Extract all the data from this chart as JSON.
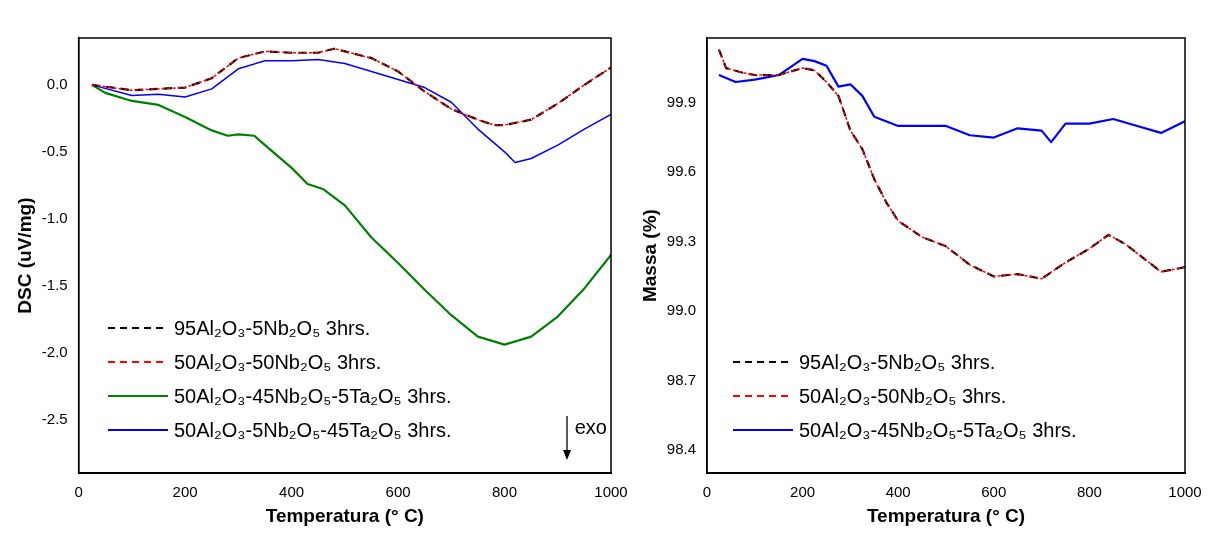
{
  "chart_data": [
    {
      "type": "line",
      "xlabel": "Temperatura (° C)",
      "ylabel": "DSC (uV/mg)",
      "xlim": [
        0,
        1000
      ],
      "xticks": [
        0,
        200,
        400,
        600,
        800,
        1000
      ],
      "ylim": [
        -2.9,
        0.35
      ],
      "yticks": [
        {
          "value": 0,
          "label": "0.0"
        },
        -0.5,
        {
          "value": -1,
          "label": "-1.0"
        },
        -1.5,
        {
          "value": -2,
          "label": "-2.0"
        },
        -2.5
      ],
      "grid": false,
      "legend": "bottom left",
      "marker": "none",
      "annotations": [
        "exo"
      ],
      "series": [
        {
          "name": "95Al₂O₃-5Nb₂O₅ 3hrs.",
          "color": "#000000",
          "line_style": "dashed",
          "x": [
            25,
            100,
            200,
            250,
            300,
            350,
            400,
            450,
            480,
            550,
            600,
            650,
            700,
            750,
            780,
            800,
            850,
            900,
            950,
            1000
          ],
          "values": [
            0,
            -0.04,
            -0.02,
            0.05,
            0.2,
            0.25,
            0.24,
            0.24,
            0.27,
            0.2,
            0.1,
            -0.05,
            -0.18,
            -0.26,
            -0.3,
            -0.3,
            -0.26,
            -0.14,
            0,
            0.13
          ]
        },
        {
          "name": "50Al₂O₃-50Nb₂O₅ 3hrs.",
          "color": "#ff0000",
          "line_style": "dashed",
          "x": [
            25,
            100,
            200,
            250,
            300,
            350,
            400,
            450,
            480,
            550,
            600,
            650,
            700,
            750,
            780,
            800,
            850,
            900,
            950,
            1000
          ],
          "values": [
            0,
            -0.04,
            -0.02,
            0.05,
            0.2,
            0.25,
            0.24,
            0.24,
            0.27,
            0.2,
            0.1,
            -0.05,
            -0.18,
            -0.26,
            -0.3,
            -0.3,
            -0.26,
            -0.14,
            0,
            0.13
          ]
        },
        {
          "name": "50Al₂O₃-45Nb₂O₅-5Ta₂O₅ 3hrs.",
          "color": "#008000",
          "line_style": "solid",
          "x": [
            25,
            50,
            100,
            150,
            200,
            250,
            280,
            300,
            330,
            350,
            400,
            430,
            460,
            500,
            550,
            600,
            650,
            700,
            750,
            800,
            850,
            900,
            950,
            1000
          ],
          "values": [
            0,
            -0.06,
            -0.12,
            -0.15,
            -0.24,
            -0.34,
            -0.38,
            -0.37,
            -0.38,
            -0.45,
            -0.62,
            -0.74,
            -0.78,
            -0.9,
            -1.14,
            -1.33,
            -1.53,
            -1.72,
            -1.88,
            -1.94,
            -1.88,
            -1.73,
            -1.52,
            -1.27
          ]
        },
        {
          "name": "50Al₂O₃-5Nb₂O₅-45Ta₂O₅ 3hrs.",
          "color": "#0000ff",
          "line_style": "solid",
          "x": [
            25,
            100,
            150,
            200,
            250,
            300,
            350,
            400,
            450,
            500,
            550,
            600,
            650,
            700,
            750,
            800,
            820,
            850,
            900,
            950,
            1000
          ],
          "values": [
            0,
            -0.08,
            -0.07,
            -0.09,
            -0.03,
            0.12,
            0.18,
            0.18,
            0.19,
            0.16,
            0.1,
            0.04,
            -0.02,
            -0.13,
            -0.33,
            -0.5,
            -0.58,
            -0.55,
            -0.45,
            -0.33,
            -0.22
          ]
        }
      ]
    },
    {
      "type": "line",
      "xlabel": "Temperatura (° C)",
      "ylabel": "Massa (%)",
      "xlim": [
        0,
        1000
      ],
      "xticks": [
        0,
        200,
        400,
        600,
        800,
        1000
      ],
      "ylim": [
        98.3,
        100.18
      ],
      "yticks": [
        98.4,
        98.7,
        {
          "value": 99,
          "label": "99.0"
        },
        99.3,
        99.6,
        99.9
      ],
      "grid": false,
      "legend": "bottom left",
      "marker": "none",
      "series": [
        {
          "name": "95Al₂O₃-5Nb₂O₅ 3hrs.",
          "color": "#000000",
          "line_style": "dashed",
          "x": [
            25,
            40,
            75,
            100,
            150,
            200,
            225,
            250,
            275,
            300,
            325,
            350,
            375,
            400,
            450,
            500,
            550,
            600,
            650,
            700,
            750,
            800,
            840,
            875,
            900,
            950,
            1000
          ],
          "values": [
            100.13,
            100.05,
            100.03,
            100.02,
            100.02,
            100.05,
            100.04,
            99.99,
            99.93,
            99.78,
            99.7,
            99.57,
            99.47,
            99.39,
            99.32,
            99.28,
            99.2,
            99.15,
            99.16,
            99.14,
            99.21,
            99.27,
            99.33,
            99.29,
            99.25,
            99.17,
            99.19
          ]
        },
        {
          "name": "50Al₂O₃-50Nb₂O₅ 3hrs.",
          "color": "#ff0000",
          "line_style": "dashed",
          "x": [
            25,
            40,
            75,
            100,
            150,
            200,
            225,
            250,
            275,
            300,
            325,
            350,
            375,
            400,
            450,
            500,
            550,
            600,
            650,
            700,
            750,
            800,
            840,
            875,
            900,
            950,
            1000
          ],
          "values": [
            100.13,
            100.05,
            100.03,
            100.02,
            100.02,
            100.05,
            100.04,
            99.99,
            99.93,
            99.78,
            99.7,
            99.57,
            99.47,
            99.39,
            99.32,
            99.28,
            99.2,
            99.15,
            99.16,
            99.14,
            99.21,
            99.27,
            99.33,
            99.29,
            99.25,
            99.17,
            99.19
          ]
        },
        {
          "name": "50Al₂O₃-45Nb₂O₅-5Ta₂O₅ 3hrs.",
          "color": "#0000ff",
          "line_style": "solid",
          "x": [
            25,
            60,
            100,
            150,
            200,
            225,
            250,
            275,
            300,
            325,
            350,
            400,
            450,
            500,
            550,
            600,
            650,
            700,
            720,
            750,
            800,
            850,
            900,
            950,
            1000
          ],
          "values": [
            100.02,
            99.99,
            100.0,
            100.02,
            100.09,
            100.08,
            100.06,
            99.97,
            99.98,
            99.93,
            99.84,
            99.8,
            99.8,
            99.8,
            99.76,
            99.75,
            99.79,
            99.78,
            99.73,
            99.81,
            99.81,
            99.83,
            99.8,
            99.77,
            99.82
          ]
        }
      ]
    }
  ]
}
